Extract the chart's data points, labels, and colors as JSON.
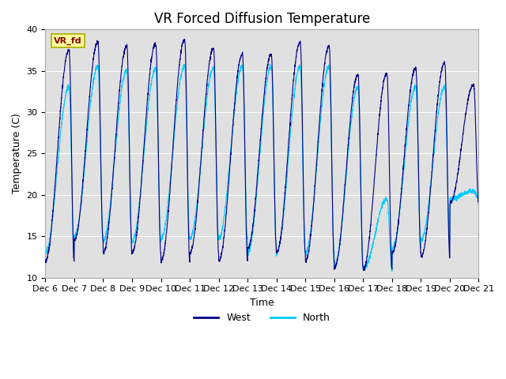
{
  "title": "VR Forced Diffusion Temperature",
  "ylabel": "Temperature (C)",
  "xlabel": "Time",
  "ylim": [
    10,
    40
  ],
  "xlim": [
    0,
    15
  ],
  "yticks": [
    10,
    15,
    20,
    25,
    30,
    35,
    40
  ],
  "xtick_labels": [
    "Dec 6",
    "Dec 7",
    "Dec 8",
    "Dec 9",
    "Dec 10",
    "Dec 11",
    "Dec 12",
    "Dec 13",
    "Dec 14",
    "Dec 15",
    "Dec 16",
    "Dec 17",
    "Dec 18",
    "Dec 19",
    "Dec 20",
    "Dec 21"
  ],
  "west_color": "#00008B",
  "north_color": "#00CCFF",
  "bg_color": "#E0E0E0",
  "annotation_text": "VR_fd",
  "annotation_bg": "#FFFF99",
  "annotation_text_color": "#8B0000",
  "legend_west": "West",
  "legend_north": "North",
  "title_fontsize": 12,
  "label_fontsize": 9,
  "tick_fontsize": 8,
  "west_peaks": [
    37.5,
    38.5,
    38.0,
    38.3,
    38.8,
    37.7,
    37.0,
    37.0,
    38.5,
    38.0,
    34.5,
    34.7,
    35.3,
    36.0,
    33.3
  ],
  "west_troughs": [
    12.0,
    14.5,
    13.0,
    13.0,
    12.0,
    13.0,
    12.0,
    13.5,
    13.0,
    12.0,
    11.2,
    11.0,
    13.0,
    12.5,
    19.0
  ],
  "north_peaks": [
    33.0,
    35.5,
    35.0,
    35.3,
    35.5,
    35.3,
    35.5,
    35.5,
    35.5,
    35.5,
    33.0,
    19.5,
    33.0,
    33.0,
    20.5
  ],
  "north_troughs": [
    13.0,
    15.0,
    14.5,
    14.3,
    14.7,
    14.7,
    14.7,
    13.0,
    13.0,
    13.0,
    11.3,
    11.0,
    13.5,
    14.5,
    19.5
  ],
  "line_width": 0.8
}
